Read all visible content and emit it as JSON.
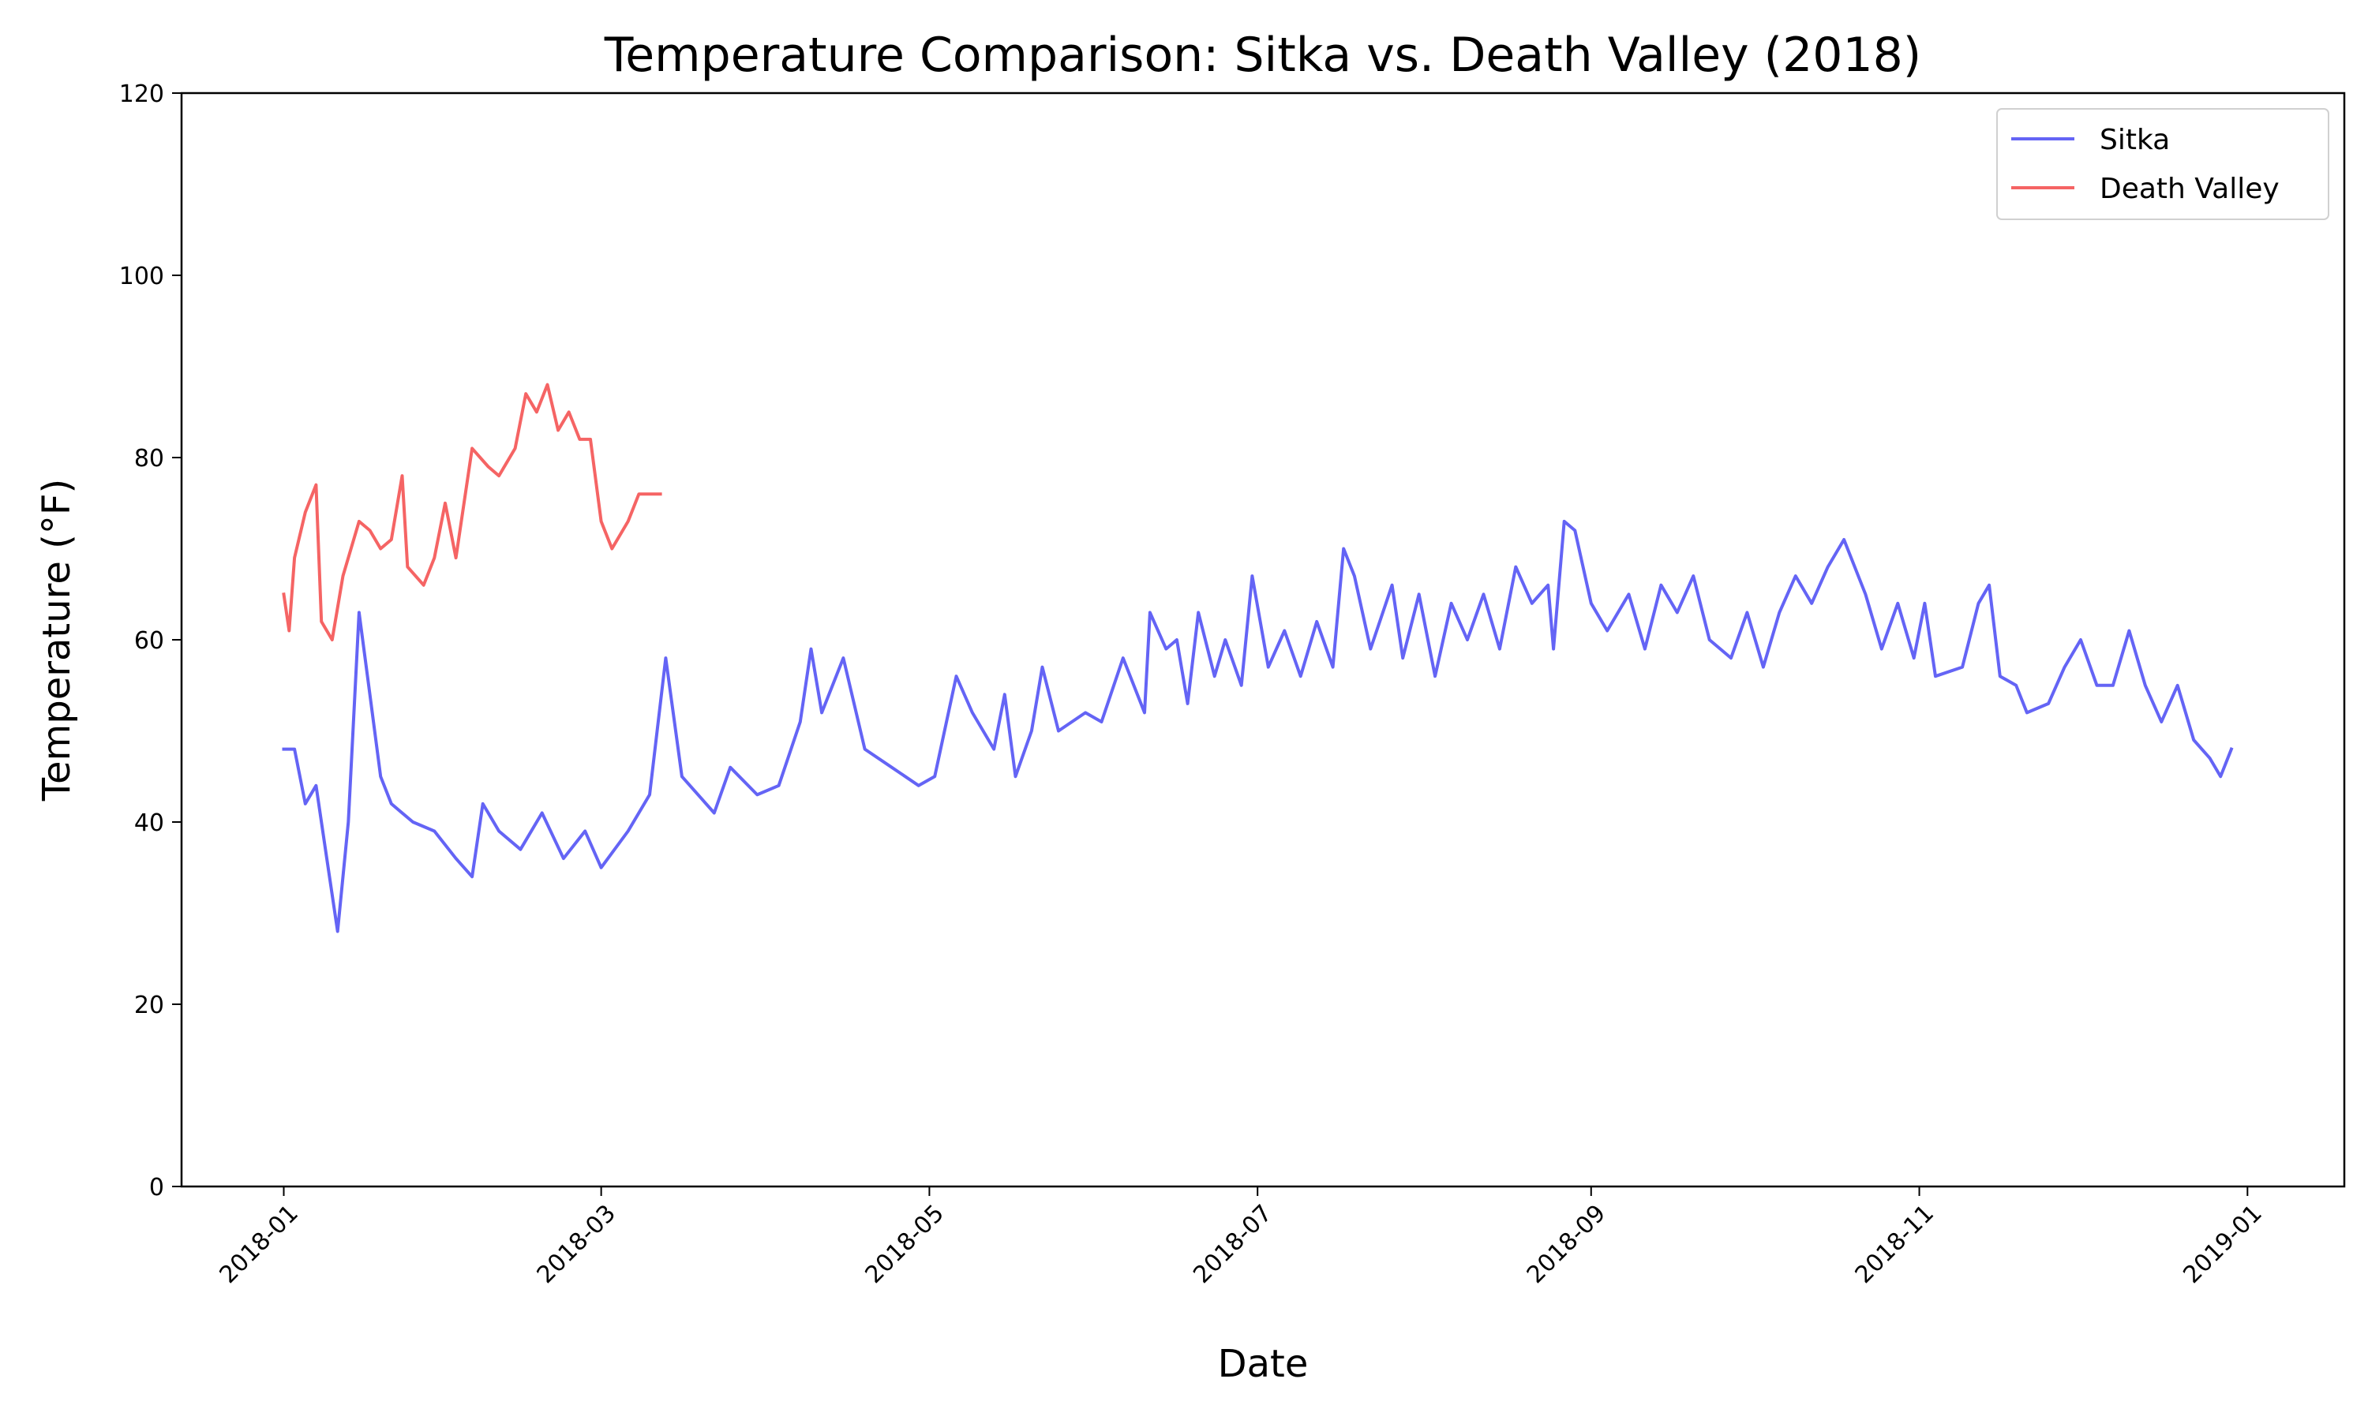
{
  "chart_data": {
    "type": "line",
    "title": "Temperature Comparison: Sitka vs. Death Valley (2018)",
    "xlabel": "Date",
    "ylabel": "Temperature (°F)",
    "ylim": [
      0,
      120
    ],
    "yticks": [
      0,
      20,
      40,
      60,
      80,
      100,
      120
    ],
    "xlim": [
      "2017-12-13",
      "2019-01-19"
    ],
    "xticks": [
      "2018-01-01",
      "2018-03-01",
      "2018-05-01",
      "2018-07-01",
      "2018-09-01",
      "2018-11-01",
      "2019-01-01"
    ],
    "xtick_labels": [
      "2018-01",
      "2018-03",
      "2018-05",
      "2018-07",
      "2018-09",
      "2018-11",
      "2019-01"
    ],
    "grid": false,
    "legend_position": "top-right",
    "series": [
      {
        "name": "Sitka",
        "color": "#6464f5",
        "points": [
          [
            "2018-01-01",
            48
          ],
          [
            "2018-01-03",
            48
          ],
          [
            "2018-01-05",
            42
          ],
          [
            "2018-01-07",
            44
          ],
          [
            "2018-01-09",
            36
          ],
          [
            "2018-01-11",
            28
          ],
          [
            "2018-01-13",
            40
          ],
          [
            "2018-01-15",
            63
          ],
          [
            "2018-01-17",
            54
          ],
          [
            "2018-01-19",
            45
          ],
          [
            "2018-01-21",
            42
          ],
          [
            "2018-01-25",
            40
          ],
          [
            "2018-01-29",
            39
          ],
          [
            "2018-02-02",
            36
          ],
          [
            "2018-02-05",
            34
          ],
          [
            "2018-02-07",
            42
          ],
          [
            "2018-02-10",
            39
          ],
          [
            "2018-02-14",
            37
          ],
          [
            "2018-02-18",
            41
          ],
          [
            "2018-02-22",
            36
          ],
          [
            "2018-02-26",
            39
          ],
          [
            "2018-03-01",
            35
          ],
          [
            "2018-03-06",
            39
          ],
          [
            "2018-03-10",
            43
          ],
          [
            "2018-03-13",
            58
          ],
          [
            "2018-03-16",
            45
          ],
          [
            "2018-03-22",
            41
          ],
          [
            "2018-03-25",
            46
          ],
          [
            "2018-03-30",
            43
          ],
          [
            "2018-04-03",
            44
          ],
          [
            "2018-04-07",
            51
          ],
          [
            "2018-04-09",
            59
          ],
          [
            "2018-04-11",
            52
          ],
          [
            "2018-04-15",
            58
          ],
          [
            "2018-04-19",
            48
          ],
          [
            "2018-04-24",
            46
          ],
          [
            "2018-04-29",
            44
          ],
          [
            "2018-05-02",
            45
          ],
          [
            "2018-05-06",
            56
          ],
          [
            "2018-05-09",
            52
          ],
          [
            "2018-05-13",
            48
          ],
          [
            "2018-05-15",
            54
          ],
          [
            "2018-05-17",
            45
          ],
          [
            "2018-05-20",
            50
          ],
          [
            "2018-05-22",
            57
          ],
          [
            "2018-05-25",
            50
          ],
          [
            "2018-05-30",
            52
          ],
          [
            "2018-06-02",
            51
          ],
          [
            "2018-06-06",
            58
          ],
          [
            "2018-06-10",
            52
          ],
          [
            "2018-06-11",
            63
          ],
          [
            "2018-06-14",
            59
          ],
          [
            "2018-06-16",
            60
          ],
          [
            "2018-06-18",
            53
          ],
          [
            "2018-06-20",
            63
          ],
          [
            "2018-06-23",
            56
          ],
          [
            "2018-06-25",
            60
          ],
          [
            "2018-06-28",
            55
          ],
          [
            "2018-06-30",
            67
          ],
          [
            "2018-07-03",
            57
          ],
          [
            "2018-07-06",
            61
          ],
          [
            "2018-07-09",
            56
          ],
          [
            "2018-07-12",
            62
          ],
          [
            "2018-07-15",
            57
          ],
          [
            "2018-07-17",
            70
          ],
          [
            "2018-07-19",
            67
          ],
          [
            "2018-07-22",
            59
          ],
          [
            "2018-07-26",
            66
          ],
          [
            "2018-07-28",
            58
          ],
          [
            "2018-07-31",
            65
          ],
          [
            "2018-08-03",
            56
          ],
          [
            "2018-08-06",
            64
          ],
          [
            "2018-08-09",
            60
          ],
          [
            "2018-08-12",
            65
          ],
          [
            "2018-08-15",
            59
          ],
          [
            "2018-08-18",
            68
          ],
          [
            "2018-08-21",
            64
          ],
          [
            "2018-08-24",
            66
          ],
          [
            "2018-08-25",
            59
          ],
          [
            "2018-08-27",
            73
          ],
          [
            "2018-08-29",
            72
          ],
          [
            "2018-09-01",
            64
          ],
          [
            "2018-09-04",
            61
          ],
          [
            "2018-09-08",
            65
          ],
          [
            "2018-09-11",
            59
          ],
          [
            "2018-09-14",
            66
          ],
          [
            "2018-09-17",
            63
          ],
          [
            "2018-09-20",
            67
          ],
          [
            "2018-09-23",
            60
          ],
          [
            "2018-09-27",
            58
          ],
          [
            "2018-09-30",
            63
          ],
          [
            "2018-10-03",
            57
          ],
          [
            "2018-10-06",
            63
          ],
          [
            "2018-10-09",
            67
          ],
          [
            "2018-10-12",
            64
          ],
          [
            "2018-10-15",
            68
          ],
          [
            "2018-10-18",
            71
          ],
          [
            "2018-10-22",
            65
          ],
          [
            "2018-10-25",
            59
          ],
          [
            "2018-10-28",
            64
          ],
          [
            "2018-10-31",
            58
          ],
          [
            "2018-11-02",
            64
          ],
          [
            "2018-11-04",
            56
          ],
          [
            "2018-11-09",
            57
          ],
          [
            "2018-11-12",
            64
          ],
          [
            "2018-11-14",
            66
          ],
          [
            "2018-11-16",
            56
          ],
          [
            "2018-11-19",
            55
          ],
          [
            "2018-11-21",
            52
          ],
          [
            "2018-11-25",
            53
          ],
          [
            "2018-11-28",
            57
          ],
          [
            "2018-12-01",
            60
          ],
          [
            "2018-12-04",
            55
          ],
          [
            "2018-12-07",
            55
          ],
          [
            "2018-12-10",
            61
          ],
          [
            "2018-12-13",
            55
          ],
          [
            "2018-12-16",
            51
          ],
          [
            "2018-12-19",
            55
          ],
          [
            "2018-12-22",
            49
          ],
          [
            "2018-12-25",
            47
          ],
          [
            "2018-12-27",
            45
          ],
          [
            "2018-12-29",
            48
          ]
        ]
      },
      {
        "name": "Death Valley",
        "color": "#f56464",
        "points": [
          [
            "2018-01-01",
            65
          ],
          [
            "2018-01-02",
            61
          ],
          [
            "2018-01-03",
            69
          ],
          [
            "2018-01-05",
            74
          ],
          [
            "2018-01-07",
            77
          ],
          [
            "2018-01-08",
            62
          ],
          [
            "2018-01-10",
            60
          ],
          [
            "2018-01-12",
            67
          ],
          [
            "2018-01-15",
            73
          ],
          [
            "2018-01-17",
            72
          ],
          [
            "2018-01-19",
            70
          ],
          [
            "2018-01-21",
            71
          ],
          [
            "2018-01-23",
            78
          ],
          [
            "2018-01-24",
            68
          ],
          [
            "2018-01-27",
            66
          ],
          [
            "2018-01-29",
            69
          ],
          [
            "2018-01-31",
            75
          ],
          [
            "2018-02-02",
            69
          ],
          [
            "2018-02-05",
            81
          ],
          [
            "2018-02-08",
            79
          ],
          [
            "2018-02-10",
            78
          ],
          [
            "2018-02-13",
            81
          ],
          [
            "2018-02-15",
            87
          ],
          [
            "2018-02-17",
            85
          ],
          [
            "2018-02-19",
            88
          ],
          [
            "2018-02-21",
            83
          ],
          [
            "2018-02-23",
            85
          ],
          [
            "2018-02-25",
            82
          ],
          [
            "2018-02-27",
            82
          ],
          [
            "2018-03-01",
            73
          ],
          [
            "2018-03-03",
            70
          ],
          [
            "2018-03-06",
            73
          ],
          [
            "2018-03-08",
            76
          ],
          [
            "2018-03-12",
            76
          ]
        ]
      }
    ]
  }
}
